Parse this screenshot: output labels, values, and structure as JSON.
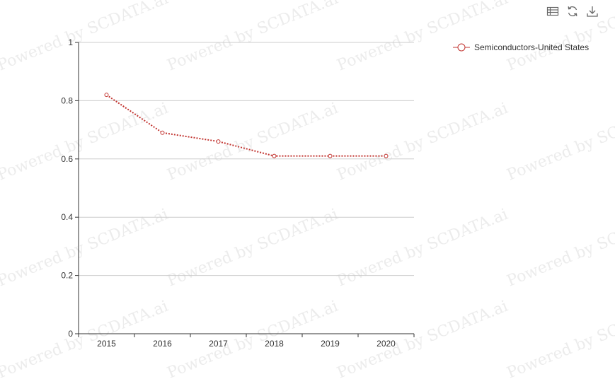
{
  "watermark": "Powered by SCDATA.ai",
  "toolbar": {
    "icons": [
      "data-view-icon",
      "refresh-icon",
      "download-icon"
    ]
  },
  "colors": {
    "series": "#c23531",
    "axis": "#333333",
    "grid": "#cccccc",
    "label": "#333333",
    "watermark": "#ececec"
  },
  "chart_data": {
    "type": "line",
    "title": "",
    "xlabel": "",
    "ylabel": "",
    "categories": [
      "2015",
      "2016",
      "2017",
      "2018",
      "2019",
      "2020"
    ],
    "series": [
      {
        "name": "Semiconductors-United States",
        "values": [
          0.82,
          0.69,
          0.66,
          0.61,
          0.61,
          0.61
        ],
        "line_style": "dotted",
        "marker": "empty-circle"
      }
    ],
    "ylim": [
      0,
      1
    ],
    "yticks": [
      "0",
      "0.2",
      "0.4",
      "0.6",
      "0.8",
      "1"
    ],
    "grid": true,
    "legend_position": "top-right"
  }
}
